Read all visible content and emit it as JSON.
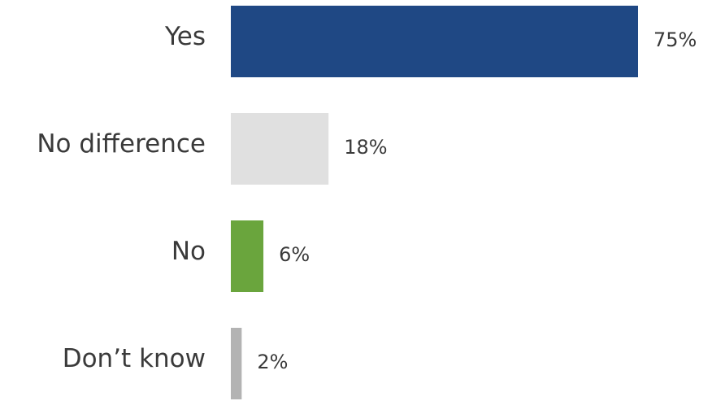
{
  "chart_data": {
    "type": "bar",
    "orientation": "horizontal",
    "categories": [
      "Yes",
      "No difference",
      "No",
      "Don’t know"
    ],
    "values": [
      75,
      18,
      6,
      2
    ],
    "value_labels": [
      "75%",
      "18%",
      "6%",
      "2%"
    ],
    "colors": [
      "#1f4884",
      "#e0e0e0",
      "#6aa53d",
      "#b3b3b3"
    ],
    "title": "",
    "xlabel": "",
    "ylabel": "",
    "xlim": [
      0,
      75
    ],
    "grid": false,
    "legend": "none"
  }
}
